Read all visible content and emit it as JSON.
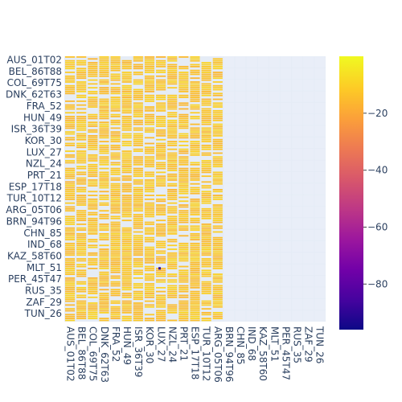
{
  "chart_data": {
    "type": "heatmap",
    "title": "",
    "xlabel": "",
    "ylabel": "",
    "y_tick_labels": [
      "AUS_01T02",
      "BEL_86T88",
      "COL_69T75",
      "DNK_62T63",
      "FRA_52",
      "HUN_49",
      "ISR_36T39",
      "KOR_30",
      "LUX_27",
      "NZL_24",
      "PRT_21",
      "ESP_17T18",
      "TUR_10T12",
      "ARG_05T06",
      "BRN_94T96",
      "CHN_85",
      "IND_68",
      "KAZ_58T60",
      "MLT_51",
      "PER_45T47",
      "RUS_35",
      "ZAF_29",
      "TUN_26"
    ],
    "x_tick_labels": [
      "AUS_01T02",
      "BEL_86T88",
      "COL_69T75",
      "DNK_62T63",
      "FRA_52",
      "HUN_49",
      "ISR_36T39",
      "KOR_30",
      "LUX_27",
      "NZL_24",
      "PRT_21",
      "ESP_17T18",
      "TUR_10T12",
      "ARG_05T06",
      "BRN_94T96",
      "CHN_85",
      "IND_68",
      "KAZ_58T60",
      "MLT_51",
      "PER_45T47",
      "RUS_35",
      "ZAF_29",
      "TUN_26"
    ],
    "rows": 23,
    "cols": 23,
    "filled_column_count": 14,
    "typical_value": -8,
    "min_value_observed": -90,
    "colorscale": "plasma",
    "colorbar": {
      "range": [
        -96,
        0
      ],
      "ticks": [
        -20,
        -40,
        -60,
        -80
      ],
      "tick_labels": [
        "−20",
        "−40",
        "−60",
        "−80"
      ]
    },
    "missing_cells_color": "#e5ecf6"
  }
}
